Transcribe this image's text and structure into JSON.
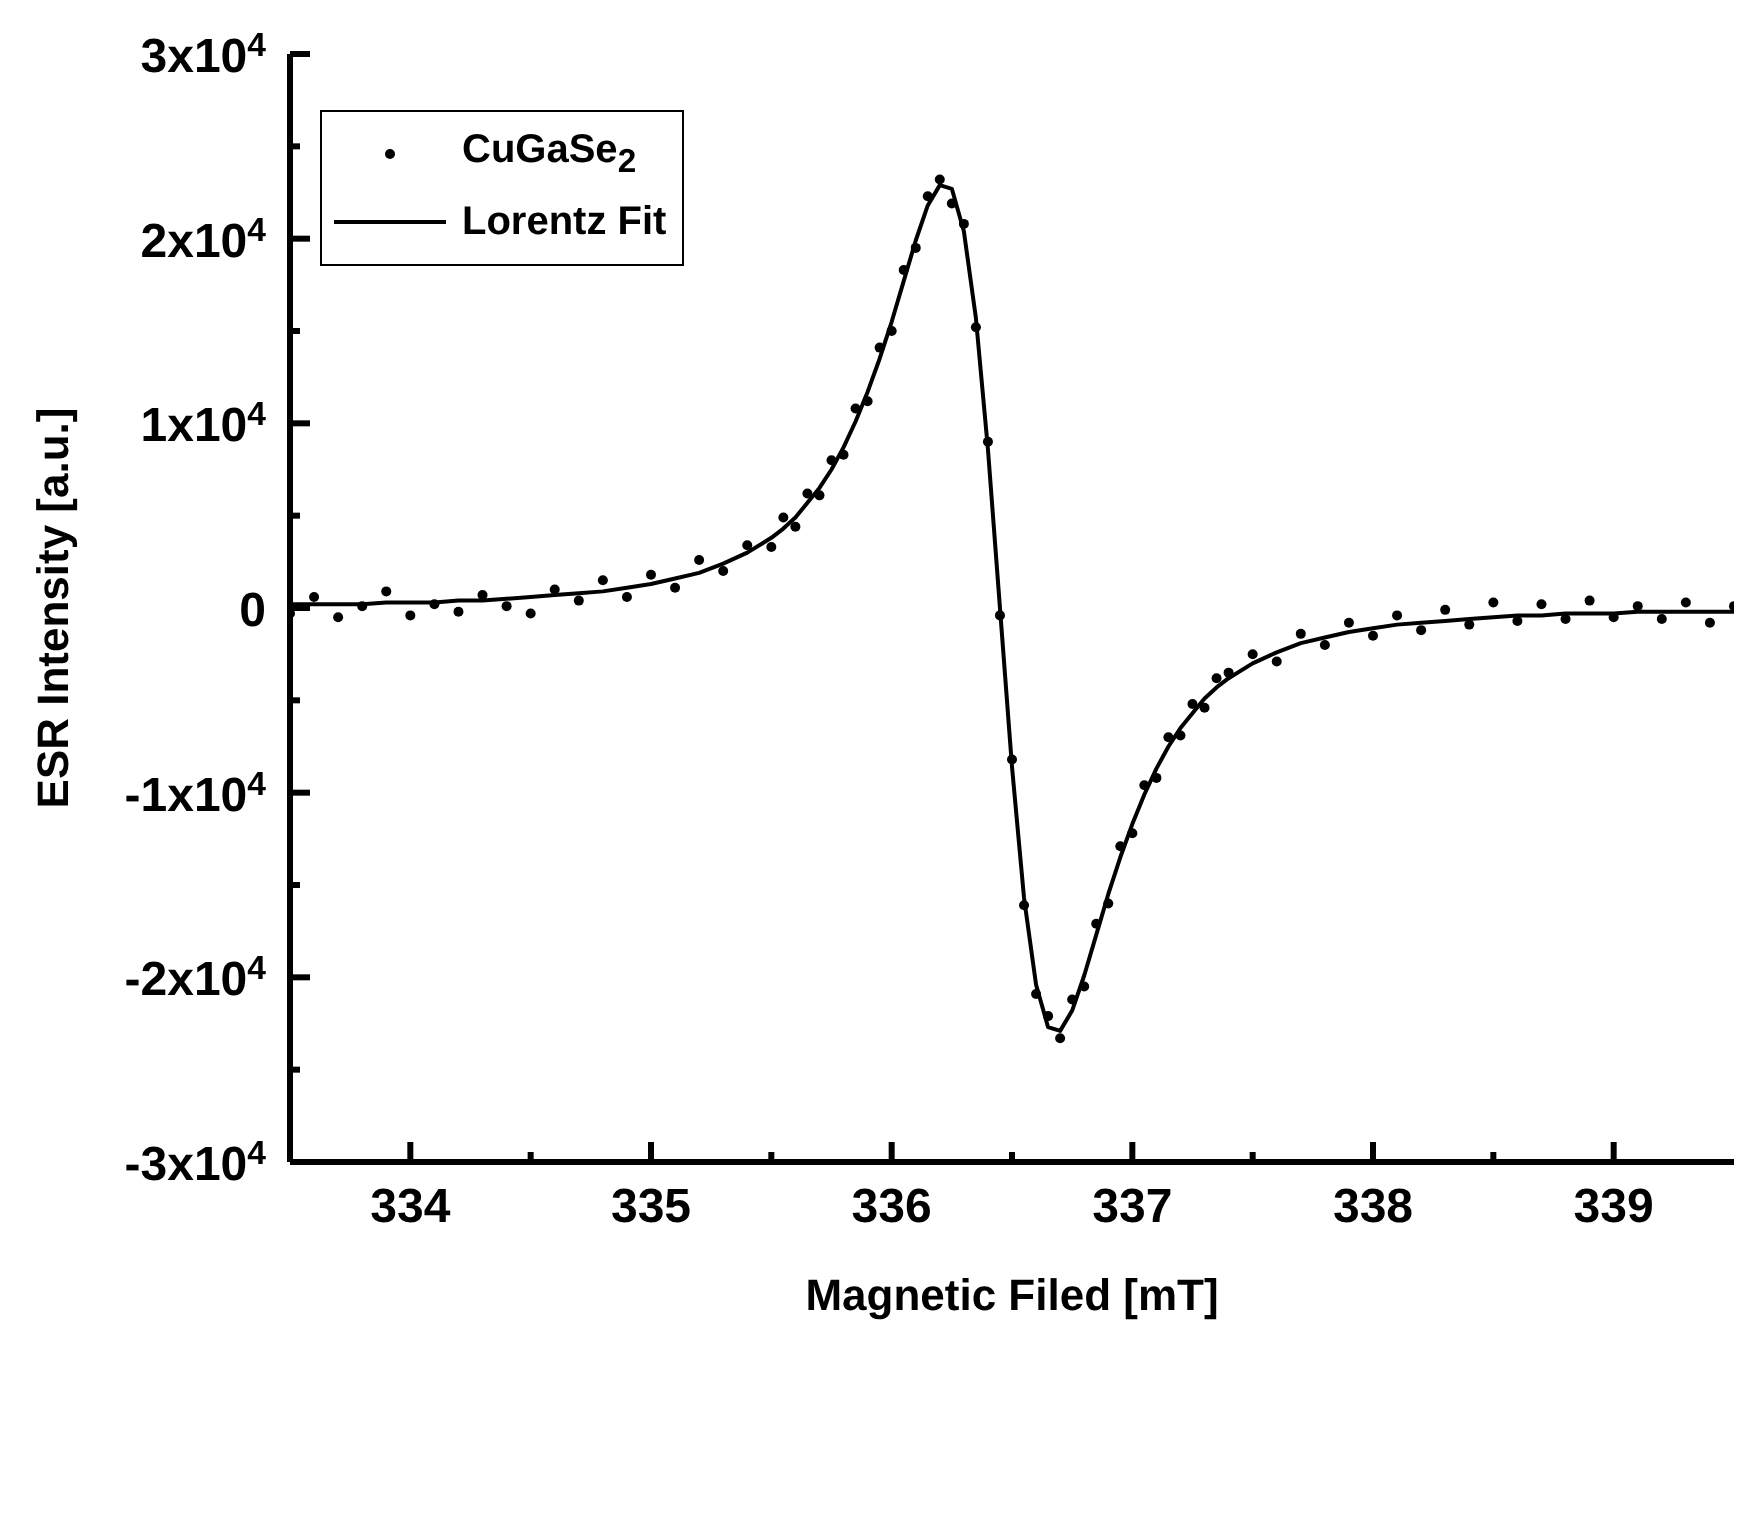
{
  "chart_data": {
    "type": "scatter",
    "xlabel": "Magnetic Filed [mT]",
    "ylabel": "ESR Intensity [a.u.]",
    "xlim": [
      333.5,
      339.5
    ],
    "xticks": [
      {
        "value": 334,
        "label": "334"
      },
      {
        "value": 334.5,
        "label": null
      },
      {
        "value": 335,
        "label": "335"
      },
      {
        "value": 335.5,
        "label": null
      },
      {
        "value": 336,
        "label": "336"
      },
      {
        "value": 336.5,
        "label": null
      },
      {
        "value": 337,
        "label": "337"
      },
      {
        "value": 337.5,
        "label": null
      },
      {
        "value": 338,
        "label": "338"
      },
      {
        "value": 338.5,
        "label": null
      },
      {
        "value": 339,
        "label": "339"
      }
    ],
    "ylim": [
      -30000,
      30000
    ],
    "yticks": [
      {
        "value": -30000,
        "label": "-3x10$^{4}$"
      },
      {
        "value": -25000,
        "label": null
      },
      {
        "value": -20000,
        "label": "-2x10$^{4}$"
      },
      {
        "value": -15000,
        "label": null
      },
      {
        "value": -10000,
        "label": "-1x10$^{4}$"
      },
      {
        "value": -5000,
        "label": null
      },
      {
        "value": 0,
        "label": "0"
      },
      {
        "value": 5000,
        "label": null
      },
      {
        "value": 10000,
        "label": "1x10$^{4}$"
      },
      {
        "value": 15000,
        "label": null
      },
      {
        "value": 20000,
        "label": "2x10$^{4}$"
      },
      {
        "value": 25000,
        "label": null
      },
      {
        "value": 30000,
        "label": "3x10$^{4}$"
      }
    ],
    "legend": "top left",
    "x": [
      333.5,
      333.6,
      333.7,
      333.8,
      333.9,
      334,
      334.1,
      334.2,
      334.3,
      334.4,
      334.5,
      334.6,
      334.7,
      334.8,
      334.9,
      335,
      335.1,
      335.2,
      335.3,
      335.4,
      335.5,
      335.55,
      335.6,
      335.65,
      335.7,
      335.75,
      335.8,
      335.85,
      335.9,
      335.95,
      336,
      336.05,
      336.1,
      336.15,
      336.2,
      336.25,
      336.3,
      336.35,
      336.4,
      336.45,
      336.5,
      336.55,
      336.6,
      336.65,
      336.7,
      336.75,
      336.8,
      336.85,
      336.9,
      336.95,
      337,
      337.05,
      337.1,
      337.15,
      337.2,
      337.25,
      337.3,
      337.35,
      337.4,
      337.5,
      337.6,
      337.7,
      337.8,
      337.9,
      338,
      338.1,
      338.2,
      338.3,
      338.4,
      338.5,
      338.6,
      338.7,
      338.8,
      338.9,
      339,
      339.1,
      339.2,
      339.3,
      339.4,
      339.5
    ],
    "series": [
      {
        "name": "CuGaSe$_{2}$",
        "marker": "circle",
        "color": "#000000",
        "values": [
          -300,
          600,
          -500,
          100,
          900,
          -400,
          200,
          -200,
          700,
          100,
          -300,
          1000,
          400,
          1500,
          600,
          1800,
          1100,
          2600,
          2000,
          3400,
          3300,
          4900,
          4400,
          6200,
          6100,
          8000,
          8300,
          10800,
          11200,
          14100,
          15000,
          18300,
          19500,
          22300,
          23200,
          21900,
          20800,
          15200,
          9000,
          -400,
          -8200,
          -16100,
          -20900,
          -22100,
          -23300,
          -21200,
          -20500,
          -17100,
          -16000,
          -12900,
          -12200,
          -9600,
          -9200,
          -7000,
          -6900,
          -5200,
          -5400,
          -3800,
          -3500,
          -2500,
          -2900,
          -1400,
          -2000,
          -800,
          -1500,
          -400,
          -1200,
          -100,
          -900,
          300,
          -700,
          200,
          -600,
          400,
          -500,
          100,
          -600,
          300,
          -800,
          100
        ]
      },
      {
        "name": "Lorentz Fit",
        "type": "line",
        "marker": "none",
        "color": "#000000",
        "values": [
          200,
          200,
          200,
          200,
          300,
          300,
          300,
          400,
          400,
          500,
          600,
          700,
          800,
          900,
          1100,
          1300,
          1600,
          1900,
          2400,
          3000,
          3800,
          4300,
          4900,
          5700,
          6500,
          7500,
          8700,
          10100,
          11700,
          13500,
          15500,
          17700,
          19900,
          21800,
          22900,
          22700,
          20400,
          15700,
          8600,
          0,
          -8600,
          -15700,
          -20400,
          -22700,
          -22900,
          -21800,
          -19900,
          -17700,
          -15500,
          -13500,
          -11700,
          -10100,
          -8700,
          -7500,
          -6500,
          -5700,
          -4900,
          -4300,
          -3800,
          -3000,
          -2400,
          -1900,
          -1600,
          -1300,
          -1100,
          -900,
          -800,
          -700,
          -600,
          -500,
          -400,
          -400,
          -300,
          -300,
          -300,
          -200,
          -200,
          -200,
          -200,
          -200
        ]
      }
    ]
  }
}
